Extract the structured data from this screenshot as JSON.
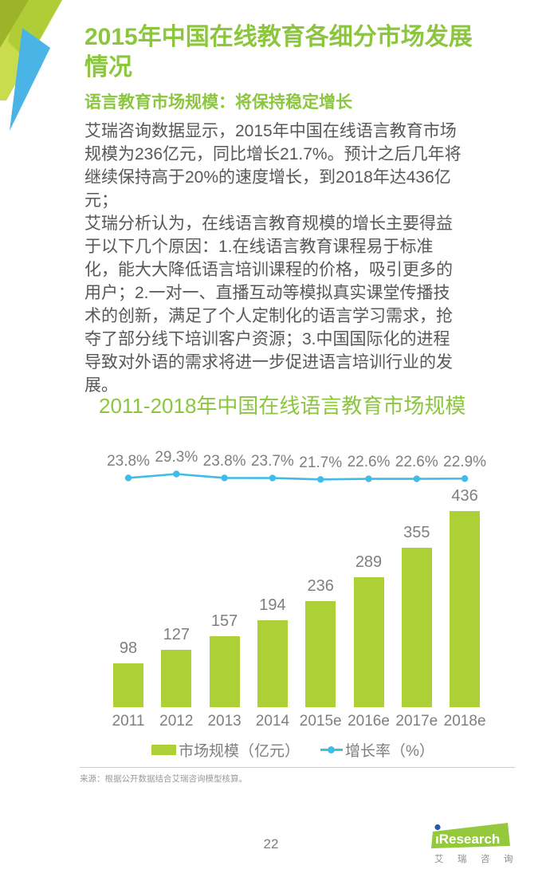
{
  "header": {
    "title_lines": [
      "2015年中国在线教育各细分市场发展",
      "情况"
    ],
    "subtitle": "语言教育市场规模：将保持稳定增长"
  },
  "body": {
    "paragraphs": [
      {
        "lines": [
          "艾瑞咨询数据显示，2015年中国在线语言教育市场",
          "规模为236亿元，同比增长21.7%。预计之后几年将",
          "继续保持高于20%的速度增长，到2018年达436亿",
          "元；"
        ]
      },
      {
        "lines": [
          "艾瑞分析认为，在线语言教育规模的增长主要得益",
          "于以下几个原因：1.在线语言教育课程易于标准",
          "化，能大大降低语言培训课程的价格，吸引更多的",
          "用户；2.一对一、直播互动等模拟真实课堂传播技",
          "术的创新，满足了个人定制化的语言学习需求，抢",
          "夺了部分线下培训客户资源；3.中国国际化的进程",
          "导致对外语的需求将进一步促进语言培训行业的发",
          "展。"
        ]
      }
    ]
  },
  "chart_data": {
    "type": "bar",
    "title": "2011-2018年中国在线语言教育市场规模",
    "categories": [
      "2011",
      "2012",
      "2013",
      "2014",
      "2015e",
      "2016e",
      "2017e",
      "2018e"
    ],
    "series": [
      {
        "name": "市场规模（亿元）",
        "type": "bar",
        "values": [
          98,
          127,
          157,
          194,
          236,
          289,
          355,
          436
        ],
        "color": "#aed037"
      },
      {
        "name": "增长率（%）",
        "type": "line",
        "values": [
          23.8,
          29.3,
          23.8,
          23.7,
          21.7,
          22.6,
          22.6,
          22.9
        ],
        "color": "#41bce8"
      }
    ],
    "value_labels_shown": true,
    "legend_position": "bottom",
    "axes_hidden": true,
    "ylim_bar": [
      0,
      450
    ]
  },
  "footer": {
    "source": "来源：根据公开数据结合艾瑞咨询模型核算。",
    "page_number": "22",
    "logo": {
      "i": "ı",
      "brand": "Research",
      "cn": "艾瑞咨询"
    }
  },
  "colors": {
    "heading_green": "#8cc63f",
    "bar_green": "#aed037",
    "line_blue": "#41bce8",
    "body_text": "#595757",
    "chart_label_gray": "#7f7f7f"
  }
}
